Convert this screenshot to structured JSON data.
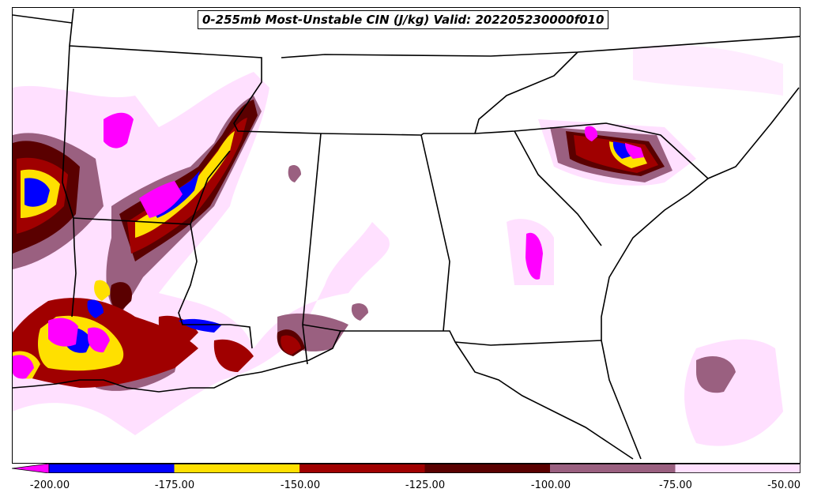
{
  "title": "0-255mb Most-Unstable CIN (J/kg) Valid: 202205230000f010",
  "colorbar": {
    "ticks": [
      "-200.00",
      "-175.00",
      "-150.00",
      "-125.00",
      "-100.00",
      "-75.00",
      "-50.00"
    ],
    "bins": [
      {
        "range": "< -200",
        "color": "#ff00ff"
      },
      {
        "range": "-200 to -175",
        "color": "#0000ff"
      },
      {
        "range": "-175 to -150",
        "color": "#ffe000"
      },
      {
        "range": "-150 to -125",
        "color": "#a00000"
      },
      {
        "range": "-125 to -100",
        "color": "#5a0000"
      },
      {
        "range": "-100 to -75",
        "color": "#9a6080"
      },
      {
        "range": "-75 to -50",
        "color": "#ffe0ff"
      }
    ]
  }
}
